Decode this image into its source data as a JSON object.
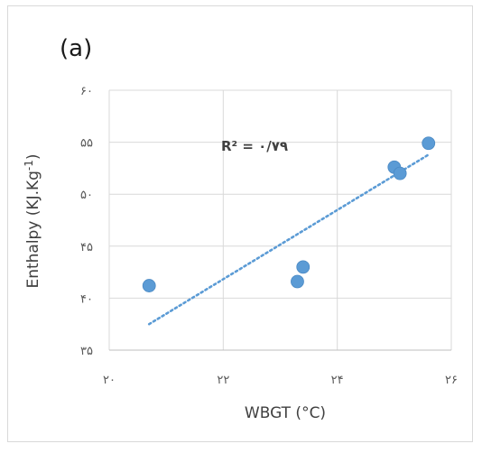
{
  "chart_data": {
    "type": "scatter",
    "panel_label": "(a)",
    "xlabel": "WBGT (°C)",
    "ylabel": "Enthalpy (KJ.Kg-1)",
    "ylabel_parts": {
      "base": "Enthalpy (KJ.Kg",
      "sup": "-1",
      "tail": ")"
    },
    "annotation": "R² = ۰/۷۹",
    "xlim": [
      20,
      26
    ],
    "ylim": [
      35,
      60
    ],
    "x_ticks": [
      20,
      22,
      24,
      26
    ],
    "x_tick_labels": [
      "۲۰",
      "۲۲",
      "۲۴",
      "۲۶"
    ],
    "y_ticks": [
      35,
      40,
      45,
      50,
      55,
      60
    ],
    "y_tick_labels": [
      "۳۵",
      "۴۰",
      "۴۵",
      "۵۰",
      "۵۵",
      "۶۰"
    ],
    "grid": true,
    "points": [
      {
        "x": 20.7,
        "y": 41.2
      },
      {
        "x": 23.3,
        "y": 41.6
      },
      {
        "x": 23.4,
        "y": 43.0
      },
      {
        "x": 25.0,
        "y": 52.6
      },
      {
        "x": 25.1,
        "y": 52.0
      },
      {
        "x": 25.6,
        "y": 54.9
      }
    ],
    "trendline": {
      "type": "linear",
      "x_start": 20.7,
      "y_start": 37.5,
      "x_end": 25.6,
      "y_end": 53.8
    },
    "colors": {
      "marker": "#5b9bd5",
      "trendline": "#5b9bd5",
      "grid": "#d9d9d9"
    }
  }
}
